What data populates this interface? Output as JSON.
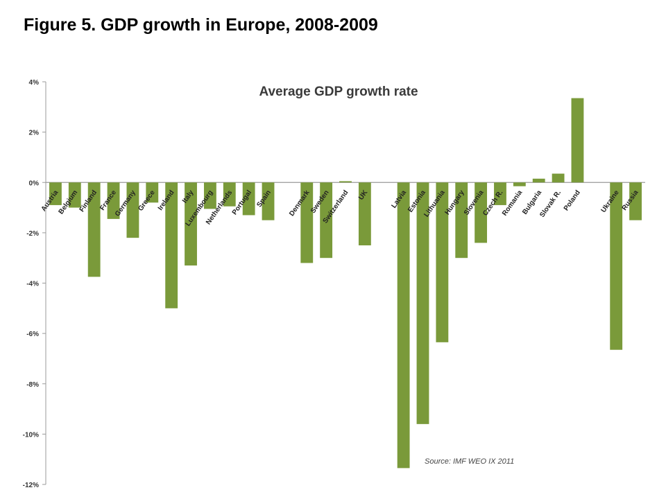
{
  "figure_title": "Figure 5. GDP growth in Europe, 2008-2009",
  "colors": {
    "bar": "#7a9a3a",
    "axis": "#9a9a9a"
  },
  "chart_data": {
    "type": "bar",
    "title": "Average GDP growth rate",
    "source": "Source: IMF WEO IX 2011",
    "xlabel": "",
    "ylabel": "",
    "ylim": [
      -12,
      4
    ],
    "yticks": [
      4,
      2,
      0,
      -2,
      -4,
      -6,
      -8,
      -10,
      -12
    ],
    "ytick_labels": [
      "4%",
      "2%",
      "0%",
      "-2%",
      "-4%",
      "-6%",
      "-8%",
      "-10%",
      "-12%"
    ],
    "grid": false,
    "categories": [
      "Austria",
      "Belgium",
      "Finland",
      "France",
      "Germany",
      "Greece",
      "Ireland",
      "Italy",
      "Luxembourg",
      "Netherlands",
      "Portugal",
      "Spain",
      "",
      "Denmark",
      "Sweden",
      "Switzerland",
      "UK",
      "",
      "Latvia",
      "Estonia",
      "Lithuania",
      "Hungary",
      "Slovenia",
      "Czech R.",
      "Romania",
      "Bulgaria",
      "Slovak R.",
      "Poland",
      "",
      "Ukraine",
      "Russia"
    ],
    "values": [
      -0.9,
      -1.0,
      -3.75,
      -1.45,
      -2.2,
      -0.8,
      -5.0,
      -3.3,
      -1.05,
      -0.95,
      -1.3,
      -1.5,
      null,
      -3.2,
      -3.0,
      0.05,
      -2.5,
      null,
      -11.35,
      -9.6,
      -6.35,
      -3.0,
      -2.4,
      -0.9,
      -0.15,
      0.15,
      0.35,
      3.35,
      null,
      -6.65,
      -1.5
    ]
  }
}
